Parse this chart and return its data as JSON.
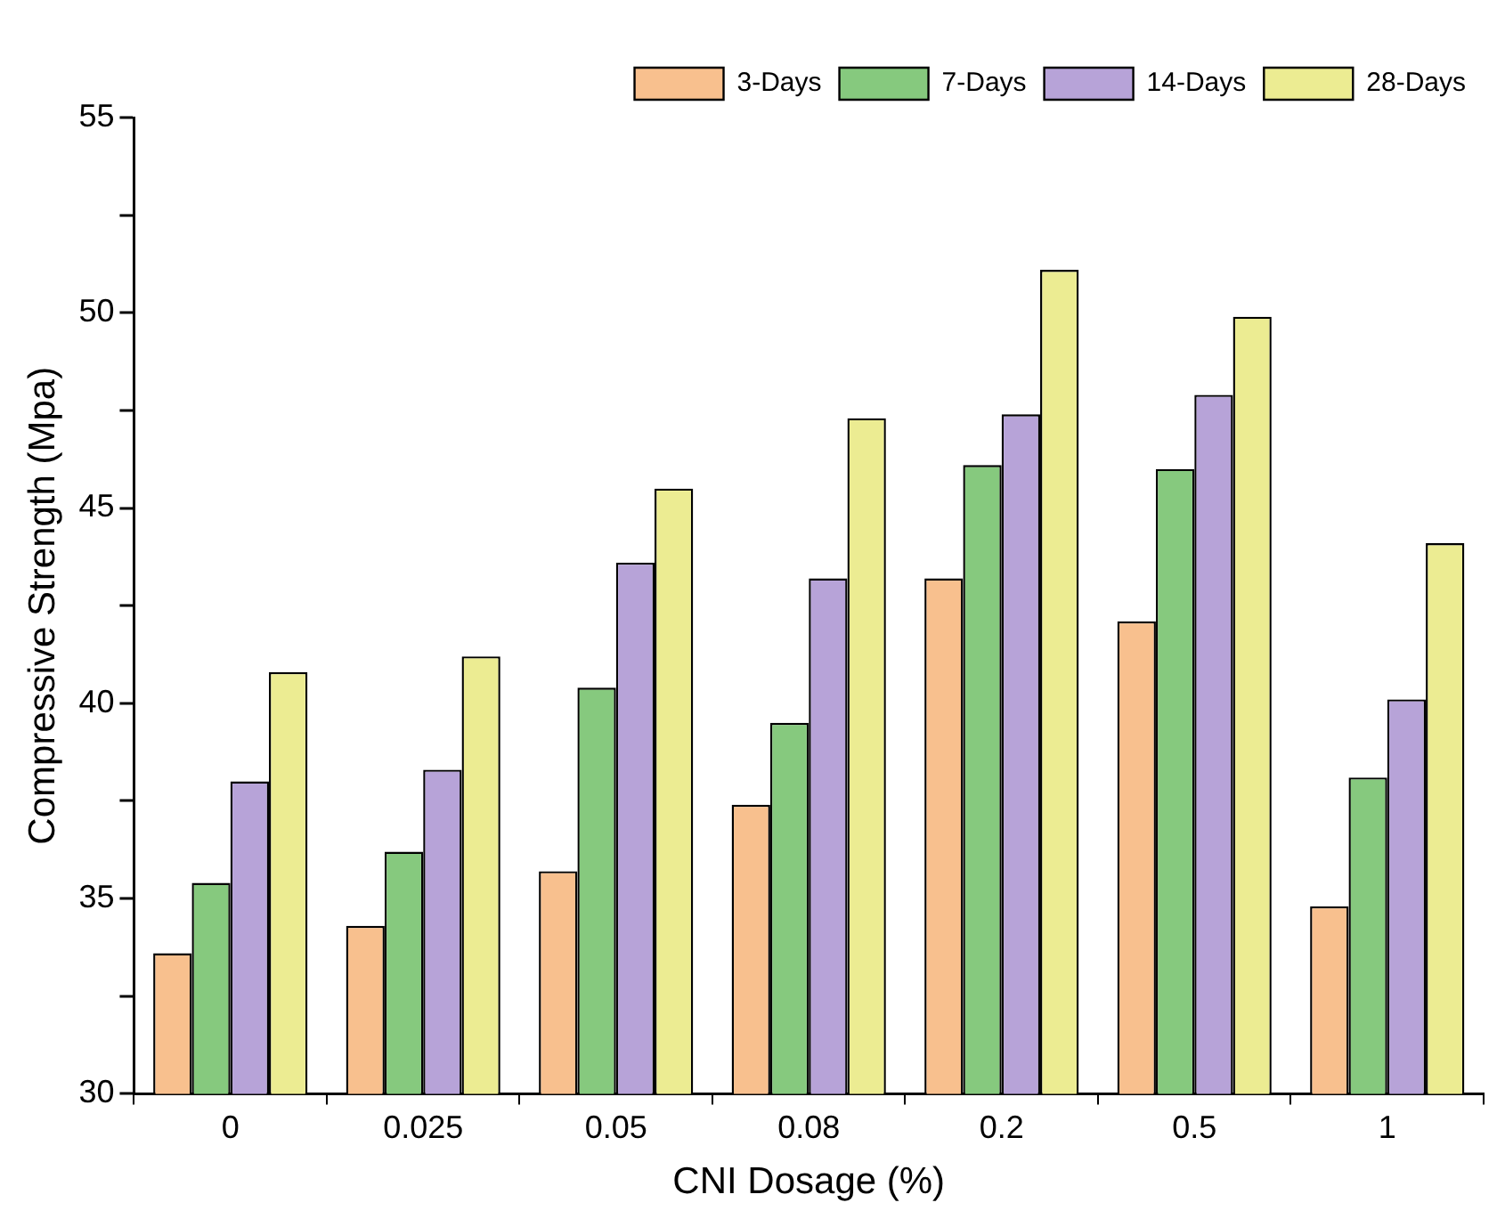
{
  "chart_data": {
    "type": "bar",
    "xlabel": "CNI Dosage (%)",
    "ylabel": "Compressive Strength (Mpa)",
    "categories": [
      "0",
      "0.025",
      "0.05",
      "0.08",
      "0.2",
      "0.5",
      "1"
    ],
    "series": [
      {
        "name": "3-Days",
        "color": "#f8c08e",
        "values": [
          33.6,
          34.3,
          35.7,
          37.4,
          43.2,
          42.1,
          34.8
        ]
      },
      {
        "name": "7-Days",
        "color": "#86c97e",
        "values": [
          35.4,
          36.2,
          40.4,
          39.5,
          46.1,
          46.0,
          38.1
        ]
      },
      {
        "name": "14-Days",
        "color": "#b7a3d8",
        "values": [
          38.0,
          38.3,
          43.6,
          43.2,
          47.4,
          47.9,
          40.1
        ]
      },
      {
        "name": "28-Days",
        "color": "#ecec92",
        "values": [
          40.8,
          41.2,
          45.5,
          47.3,
          51.1,
          49.9,
          44.1
        ]
      }
    ],
    "ylim": [
      30,
      55
    ],
    "yticks": [
      30,
      {
        "value": 32.5,
        "label": null
      },
      35,
      {
        "value": 37.5,
        "label": null
      },
      40,
      {
        "value": 42.5,
        "label": null
      },
      45,
      {
        "value": 47.5,
        "label": null
      },
      50,
      {
        "value": 52.5,
        "label": null
      },
      55
    ],
    "grid": false,
    "legend": "top right"
  }
}
